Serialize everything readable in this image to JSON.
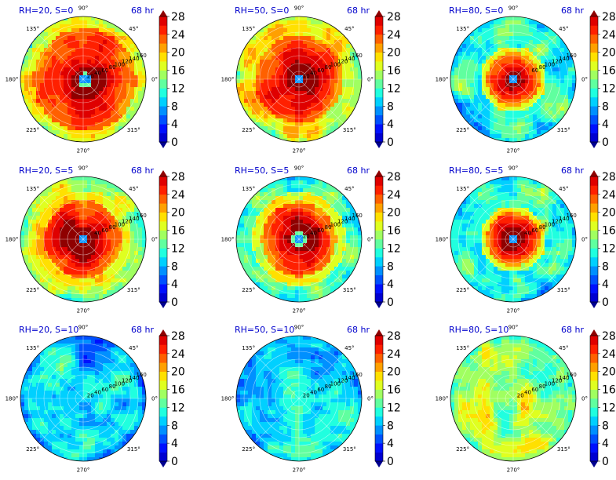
{
  "chart_data": {
    "type": "heatmap",
    "projection": "polar",
    "grid": true,
    "azimuth_tick_labels": [
      "0°",
      "45°",
      "90°",
      "135°",
      "180°",
      "225°",
      "270°",
      "315°"
    ],
    "radial_tick_labels": [
      "20",
      "40",
      "60",
      "80",
      "100",
      "120",
      "140",
      "160"
    ],
    "colorbar": {
      "ticks": [
        "0",
        "4",
        "8",
        "12",
        "16",
        "20",
        "24",
        "28"
      ],
      "range": [
        0,
        28
      ],
      "levels": [
        0,
        2,
        4,
        6,
        8,
        10,
        12,
        14,
        16,
        18,
        20,
        22,
        24,
        26,
        28
      ],
      "colormap": [
        "#00008f",
        "#0000d0",
        "#0010ff",
        "#0050ff",
        "#0090ff",
        "#00d0ff",
        "#20ffdf",
        "#60ff9f",
        "#a0ff60",
        "#dfff20",
        "#ffe000",
        "#ffa000",
        "#ff6000",
        "#ff2000",
        "#df0000",
        "#8f0000"
      ],
      "extend": "both"
    },
    "panels": [
      {
        "title": "RH=20, S=0",
        "time": "68 hr",
        "core_radius": 0.82,
        "eye_radius": 0.08,
        "eye_offset": [
          0.03,
          0.01
        ],
        "background_level": 12,
        "radial_labels_visible": 8
      },
      {
        "title": "RH=50, S=0",
        "time": "68 hr",
        "core_radius": 0.7,
        "eye_radius": 0.07,
        "eye_offset": [
          0.0,
          0.0
        ],
        "background_level": 18,
        "radial_labels_visible": 8
      },
      {
        "title": "RH=80, S=0",
        "time": "68 hr",
        "core_radius": 0.42,
        "eye_radius": 0.06,
        "eye_offset": [
          0.0,
          0.0
        ],
        "background_level": 12,
        "radial_labels_visible": 6
      },
      {
        "title": "RH=20, S=5",
        "time": "68 hr",
        "core_radius": 0.62,
        "eye_radius": 0.07,
        "eye_offset": [
          0.0,
          0.0
        ],
        "background_level": 16,
        "radial_labels_visible": 7
      },
      {
        "title": "RH=50, S=5",
        "time": "68 hr",
        "core_radius": 0.6,
        "eye_radius": 0.08,
        "eye_offset": [
          0.0,
          0.0
        ],
        "background_level": 13,
        "radial_labels_visible": 8
      },
      {
        "title": "RH=80, S=5",
        "time": "68 hr",
        "core_radius": 0.42,
        "eye_radius": 0.05,
        "eye_offset": [
          0.0,
          0.0
        ],
        "background_level": 12,
        "radial_labels_visible": 7
      },
      {
        "title": "RH=20, S=10",
        "time": "68 hr",
        "core_radius": 0.0,
        "eye_radius": 0.0,
        "eye_offset": [
          0.0,
          0.0
        ],
        "background_level": 9,
        "radial_labels_visible": 8
      },
      {
        "title": "RH=50, S=10",
        "time": "68 hr",
        "core_radius": 0.0,
        "eye_radius": 0.0,
        "eye_offset": [
          0.0,
          0.0
        ],
        "background_level": 10,
        "radial_labels_visible": 8
      },
      {
        "title": "RH=80, S=10",
        "time": "68 hr",
        "core_radius": 0.0,
        "eye_radius": 0.0,
        "eye_offset": [
          0.0,
          0.0
        ],
        "background_level": 15,
        "radial_labels_visible": 8
      }
    ]
  }
}
